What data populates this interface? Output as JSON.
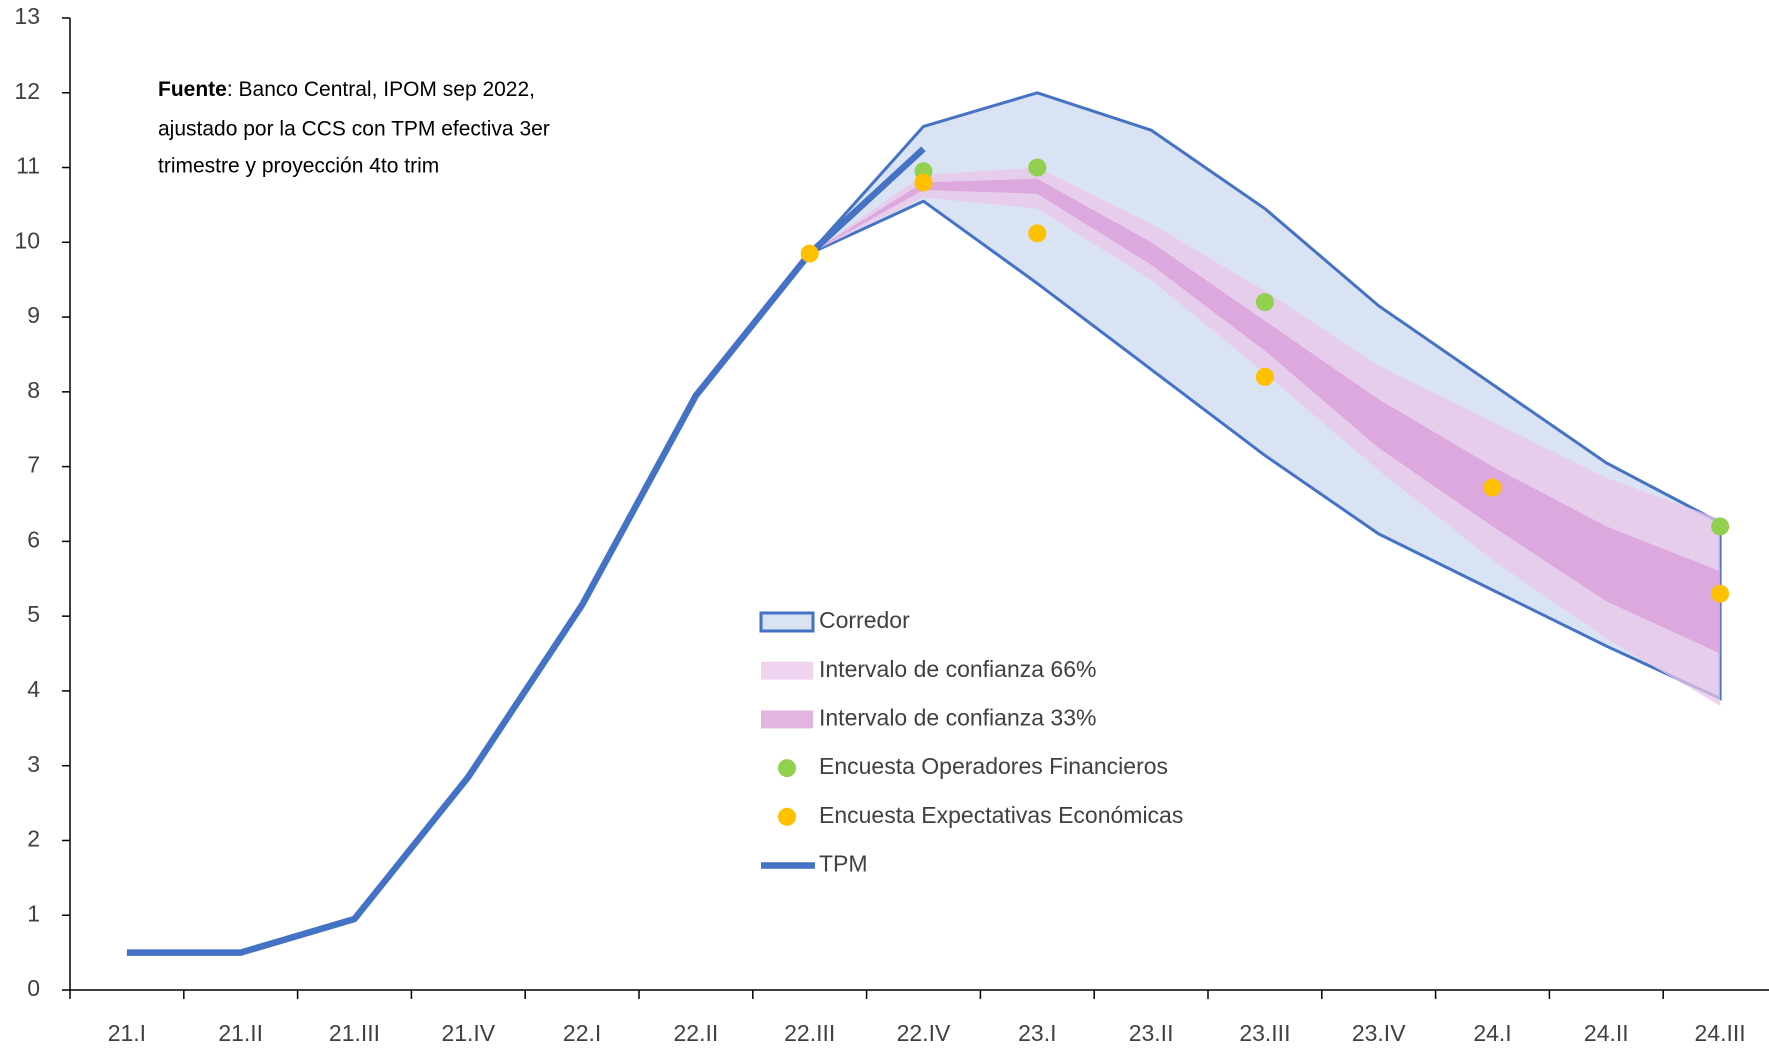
{
  "chart_data": {
    "type": "line",
    "annotation_bold": "Fuente",
    "annotation_lines": [
      ": Banco Central, IPOM sep 2022,",
      "ajustado por la CCS con TPM efectiva 3er",
      "trimestre y proyección 4to trim"
    ],
    "categories": [
      "21.I",
      "21.II",
      "21.III",
      "21.IV",
      "22.I",
      "22.II",
      "22.III",
      "22.IV",
      "23.I",
      "23.II",
      "23.III",
      "23.IV",
      "24.I",
      "24.II",
      "24.III"
    ],
    "ylim": [
      0,
      13
    ],
    "yticks": [
      0,
      1,
      2,
      3,
      4,
      5,
      6,
      7,
      8,
      9,
      10,
      11,
      12,
      13
    ],
    "series": [
      {
        "name": "Corredor",
        "type": "band",
        "color": "#dae3f3",
        "stroke": "#4472c4",
        "upper": [
          null,
          null,
          null,
          null,
          null,
          null,
          9.85,
          11.55,
          12.0,
          11.5,
          10.45,
          9.15,
          8.1,
          7.05,
          6.25
        ],
        "lower": [
          null,
          null,
          null,
          null,
          null,
          null,
          9.85,
          10.55,
          9.45,
          8.3,
          7.15,
          6.1,
          5.35,
          4.6,
          3.9
        ]
      },
      {
        "name": "Intervalo de confianza 66%",
        "type": "band",
        "color": "#e9c6ea",
        "upper": [
          null,
          null,
          null,
          null,
          null,
          null,
          9.85,
          10.9,
          11.0,
          10.25,
          9.35,
          8.35,
          7.6,
          6.85,
          6.3
        ],
        "lower": [
          null,
          null,
          null,
          null,
          null,
          null,
          9.85,
          10.6,
          10.45,
          9.5,
          8.25,
          6.95,
          5.75,
          4.7,
          3.8
        ]
      },
      {
        "name": "Intervalo de confianza 33%",
        "type": "band",
        "color": "#d99bd8",
        "upper": [
          null,
          null,
          null,
          null,
          null,
          null,
          9.85,
          10.8,
          10.85,
          10.0,
          8.95,
          7.9,
          7.0,
          6.2,
          5.6
        ],
        "lower": [
          null,
          null,
          null,
          null,
          null,
          null,
          9.85,
          10.7,
          10.65,
          9.7,
          8.55,
          7.25,
          6.2,
          5.2,
          4.5
        ]
      },
      {
        "name": "TPM",
        "type": "line",
        "color": "#4472c4",
        "values": [
          0.5,
          0.5,
          0.95,
          2.85,
          5.15,
          7.95,
          9.85,
          11.25,
          null,
          null,
          null,
          null,
          null,
          null,
          null
        ]
      },
      {
        "name": "Encuesta Operadores Financieros",
        "type": "scatter",
        "color": "#92d050",
        "values": [
          null,
          null,
          null,
          null,
          null,
          null,
          null,
          10.95,
          11.0,
          null,
          9.2,
          null,
          null,
          null,
          6.2
        ]
      },
      {
        "name": "Encuesta Expectativas Económicas",
        "type": "scatter",
        "color": "#ffc000",
        "values": [
          null,
          null,
          null,
          null,
          null,
          null,
          9.85,
          10.8,
          10.12,
          null,
          8.2,
          null,
          6.72,
          null,
          5.3
        ]
      }
    ],
    "legend_order": [
      0,
      1,
      2,
      4,
      5,
      3
    ]
  }
}
